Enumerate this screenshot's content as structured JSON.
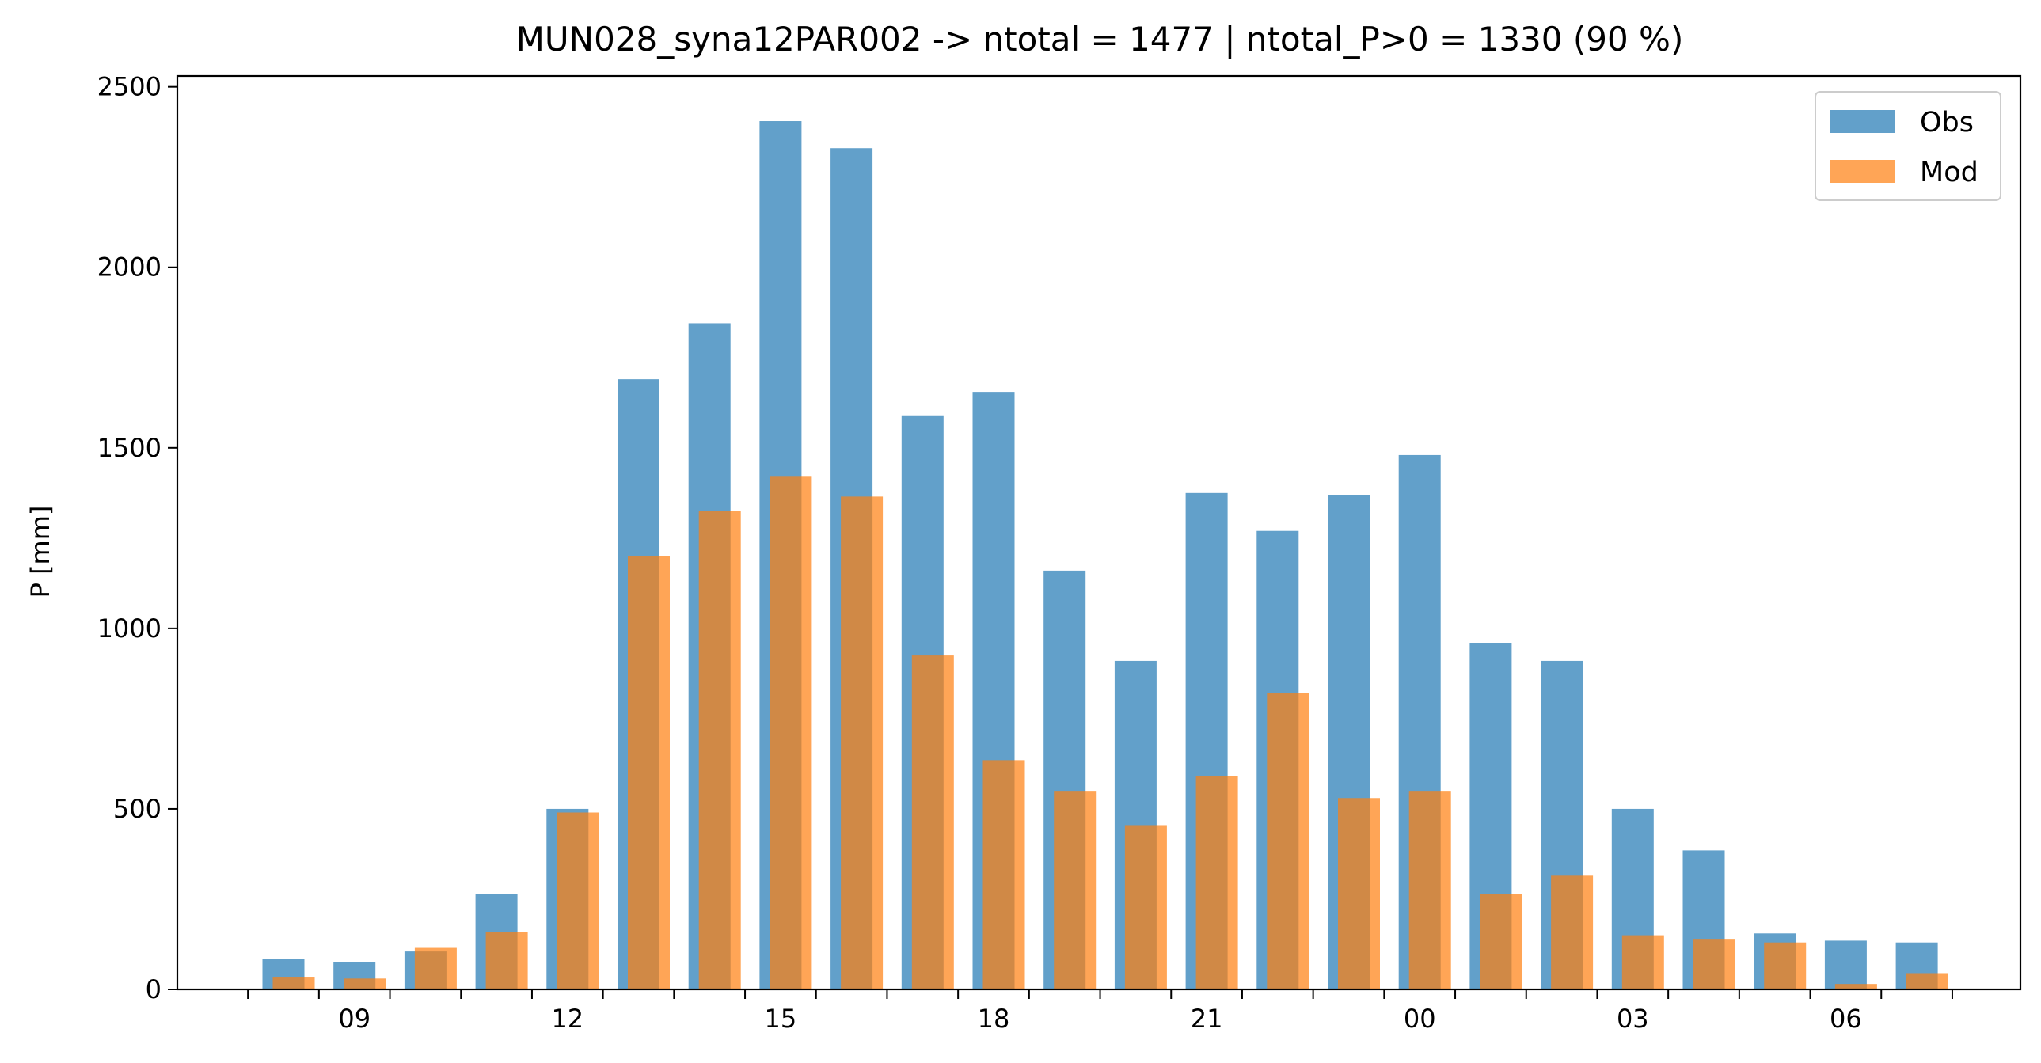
{
  "chart_data": {
    "type": "bar",
    "title": "MUN028_syna12PAR002 -> ntotal = 1477 | ntotal_P>0 = 1330 (90 %)",
    "xlabel": "",
    "ylabel": "P [mm]",
    "ylim": [
      0,
      2530
    ],
    "yticks": [
      "0",
      "500",
      "1000",
      "1500",
      "2000",
      "2500"
    ],
    "x_tick_labels": [
      "09",
      "12",
      "15",
      "18",
      "21",
      "00",
      "03",
      "06"
    ],
    "hours": [
      8,
      9,
      10,
      11,
      12,
      13,
      14,
      15,
      16,
      17,
      18,
      19,
      20,
      21,
      22,
      23,
      0,
      1,
      2,
      3,
      4,
      5,
      6,
      7
    ],
    "series": [
      {
        "name": "Obs",
        "color": "#1f77b4",
        "values": [
          85,
          75,
          105,
          265,
          500,
          1690,
          1845,
          2405,
          2330,
          1590,
          1655,
          1160,
          910,
          1375,
          1270,
          1370,
          1480,
          960,
          910,
          500,
          385,
          155,
          135,
          130
        ]
      },
      {
        "name": "Mod",
        "color": "#ff7f0e",
        "values": [
          35,
          30,
          115,
          160,
          490,
          1200,
          1325,
          1420,
          1365,
          925,
          635,
          550,
          455,
          590,
          820,
          530,
          550,
          265,
          315,
          150,
          140,
          130,
          15,
          45
        ]
      }
    ],
    "legend": {
      "position": "top-right",
      "entries": [
        "Obs",
        "Mod"
      ]
    },
    "grid": false
  }
}
